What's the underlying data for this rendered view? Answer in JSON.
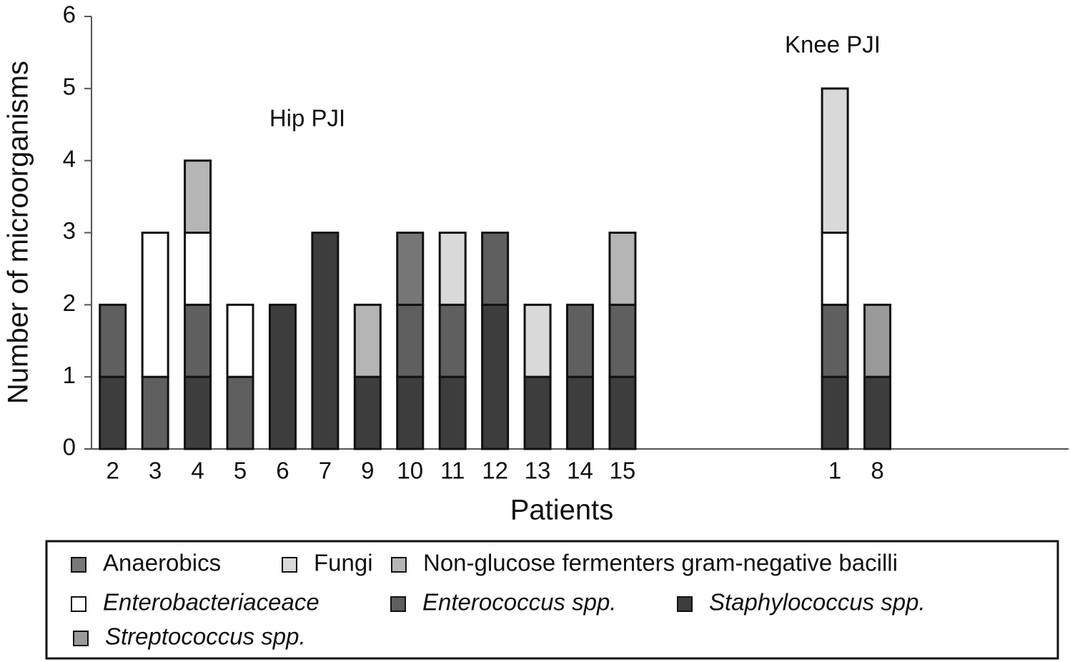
{
  "chart_data": {
    "type": "stacked_bar",
    "annotations": [
      "Hip PJI",
      "Knee PJI"
    ],
    "x_label": "Patients",
    "y_label": "Number of microorganisms",
    "categories": [
      "2",
      "3",
      "4",
      "5",
      "6",
      "7",
      "9",
      "10",
      "11",
      "12",
      "13",
      "14",
      "15",
      null,
      null,
      null,
      null,
      "1",
      "8",
      null,
      null,
      null,
      null
    ],
    "series": [
      {
        "name": "Staphylococcus spp.",
        "color": "#3d3d3d",
        "italic": true,
        "values": [
          1,
          null,
          1,
          null,
          2,
          3,
          1,
          1,
          1,
          2,
          1,
          1,
          1,
          null,
          null,
          null,
          null,
          1,
          1,
          null,
          null,
          null,
          null
        ]
      },
      {
        "name": "Enterococcus spp.",
        "color": "#5f5f5f",
        "italic": true,
        "values": [
          1,
          1,
          1,
          1,
          null,
          null,
          null,
          1,
          1,
          1,
          null,
          1,
          1,
          null,
          null,
          null,
          null,
          1,
          null,
          null,
          null,
          null,
          null
        ]
      },
      {
        "name": "Anaerobics",
        "color": "#777777",
        "values": [
          null,
          null,
          null,
          null,
          null,
          null,
          null,
          1,
          null,
          null,
          null,
          null,
          null,
          null,
          null,
          null,
          null,
          null,
          null,
          null,
          null,
          null,
          null
        ]
      },
      {
        "name": "Streptococcus spp.",
        "color": "#9a9a9a",
        "italic": true,
        "values": [
          null,
          null,
          null,
          null,
          null,
          null,
          null,
          null,
          null,
          null,
          null,
          null,
          null,
          null,
          null,
          null,
          null,
          null,
          1,
          null,
          null,
          null,
          null
        ]
      },
      {
        "name": "Enterobacteriaceace",
        "color": "#ffffff",
        "italic": true,
        "values": [
          null,
          2,
          1,
          1,
          null,
          null,
          null,
          null,
          null,
          null,
          null,
          null,
          null,
          null,
          null,
          null,
          null,
          1,
          null,
          null,
          null,
          null,
          null
        ]
      },
      {
        "name": "Non-glucose fermenters gram-negative bacilli",
        "color": "#b5b5b5",
        "values": [
          null,
          null,
          1,
          null,
          null,
          null,
          1,
          null,
          null,
          null,
          null,
          null,
          1,
          null,
          null,
          null,
          null,
          null,
          null,
          null,
          null,
          null,
          null
        ]
      },
      {
        "name": "Fungi",
        "color": "#d9d9d9",
        "values": [
          null,
          null,
          null,
          null,
          null,
          null,
          null,
          null,
          1,
          null,
          1,
          null,
          null,
          null,
          null,
          null,
          null,
          2,
          null,
          null,
          null,
          null,
          null
        ]
      }
    ],
    "ylim": [
      0,
      6
    ],
    "yticks": [
      0,
      1,
      2,
      3,
      4,
      5,
      6
    ]
  }
}
